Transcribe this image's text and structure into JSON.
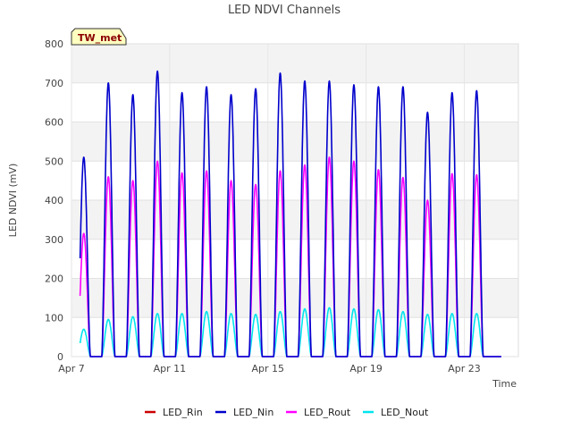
{
  "chart_data": {
    "type": "line",
    "title": "LED NDVI Channels",
    "xlabel": "Time",
    "ylabel": "LED NDVI (mV)",
    "station_badge": "TW_met",
    "xlim": [
      0,
      18.2
    ],
    "ylim": [
      0,
      800
    ],
    "x_ticks": [
      {
        "day": 0,
        "label": "Apr 7"
      },
      {
        "day": 4,
        "label": "Apr 11"
      },
      {
        "day": 8,
        "label": "Apr 15"
      },
      {
        "day": 12,
        "label": "Apr 19"
      },
      {
        "day": 16,
        "label": "Apr 23"
      }
    ],
    "y_ticks": [
      0,
      100,
      200,
      300,
      400,
      500,
      600,
      700,
      800
    ],
    "grid": true,
    "legend_position": "bottom",
    "x_unit": "days since Apr 7 (daily peaks at local noon)",
    "series": [
      {
        "name": "LED_Rin",
        "color": "#cc0000",
        "peaks": []
      },
      {
        "name": "LED_Nin",
        "color": "#0000cc",
        "peaks": [
          510,
          700,
          670,
          730,
          675,
          690,
          670,
          685,
          725,
          705,
          705,
          695,
          690,
          690,
          625,
          675,
          680
        ]
      },
      {
        "name": "LED_Rout",
        "color": "#ff00ff",
        "peaks": [
          315,
          460,
          450,
          500,
          470,
          475,
          450,
          440,
          475,
          490,
          510,
          500,
          478,
          458,
          400,
          468,
          465
        ]
      },
      {
        "name": "LED_Nout",
        "color": "#00e5ee",
        "peaks": [
          70,
          95,
          102,
          110,
          110,
          115,
          110,
          108,
          115,
          122,
          125,
          122,
          120,
          115,
          108,
          110,
          110
        ]
      }
    ]
  }
}
